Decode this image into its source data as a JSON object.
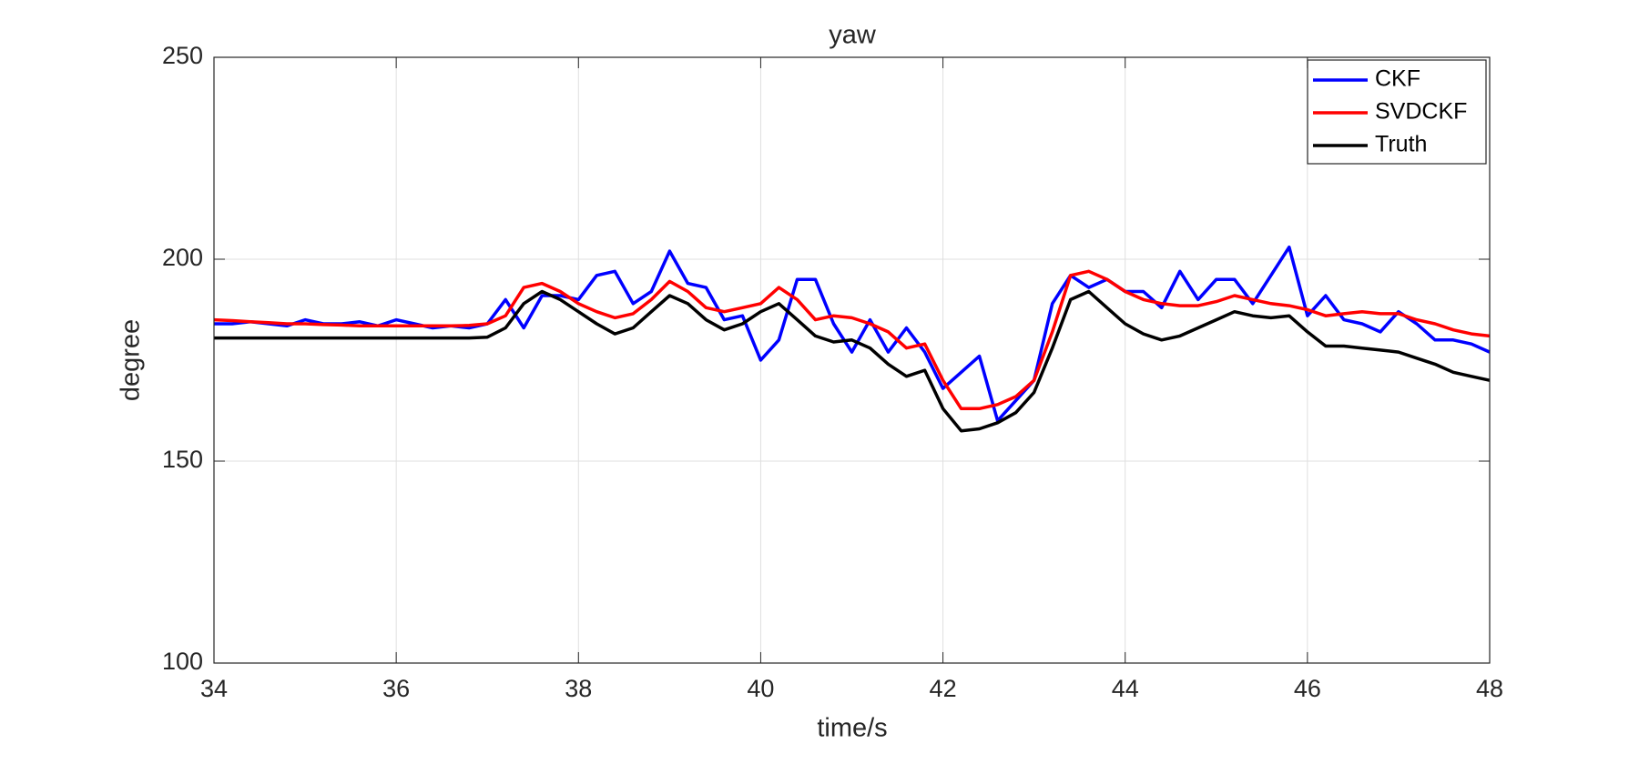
{
  "chart_data": {
    "type": "line",
    "title": "yaw",
    "x_label": "time/s",
    "y_label": "degree",
    "x": [
      34,
      34.2,
      34.4,
      34.6,
      34.8,
      35,
      35.2,
      35.4,
      35.6,
      35.8,
      36,
      36.2,
      36.4,
      36.6,
      36.8,
      37,
      37.2,
      37.4,
      37.6,
      37.8,
      38,
      38.2,
      38.4,
      38.6,
      38.8,
      39,
      39.2,
      39.4,
      39.6,
      39.8,
      40,
      40.2,
      40.4,
      40.6,
      40.8,
      41,
      41.2,
      41.4,
      41.6,
      41.8,
      42,
      42.2,
      42.4,
      42.6,
      42.8,
      43,
      43.2,
      43.4,
      43.6,
      43.8,
      44,
      44.2,
      44.4,
      44.6,
      44.8,
      45,
      45.2,
      45.4,
      45.6,
      45.8,
      46,
      46.2,
      46.4,
      46.6,
      46.8,
      47,
      47.2,
      47.4,
      47.6,
      47.8,
      48
    ],
    "series": [
      {
        "name": "CKF",
        "color": "#0000ff",
        "values": [
          184,
          184,
          184.5,
          184,
          183.5,
          185,
          184,
          184,
          184.5,
          183.5,
          185,
          184,
          183,
          183.5,
          183,
          184,
          190,
          183,
          191,
          191,
          190,
          196,
          197,
          189,
          192,
          202,
          194,
          193,
          185,
          186,
          175,
          180,
          195,
          195,
          184,
          177,
          185,
          177,
          183,
          177,
          168,
          172,
          176,
          160,
          165,
          170,
          189,
          196,
          193,
          195,
          192,
          192,
          188,
          197,
          190,
          195,
          195,
          189,
          196,
          203,
          186,
          191,
          185,
          184,
          182,
          187,
          184,
          180,
          180,
          179,
          177
        ]
      },
      {
        "name": "SVDCKF",
        "color": "#ff0000",
        "values": [
          185,
          184.8,
          184.5,
          184.3,
          184,
          184,
          183.8,
          183.7,
          183.5,
          183.5,
          183.5,
          183.5,
          183.5,
          183.5,
          183.6,
          184,
          186,
          193,
          194,
          192,
          189,
          187,
          185.5,
          186.5,
          190,
          194.5,
          192,
          188,
          187,
          188,
          189,
          193,
          190,
          185,
          186,
          185.5,
          184,
          182,
          178,
          179,
          170,
          163,
          163,
          164,
          166,
          170,
          182,
          196,
          197,
          195,
          192,
          190,
          189,
          188.5,
          188.5,
          189.5,
          191,
          190,
          189,
          188.5,
          187.5,
          186,
          186.5,
          187,
          186.5,
          186.5,
          185,
          184,
          182.5,
          181.5,
          181
        ]
      },
      {
        "name": "Truth",
        "color": "#000000",
        "values": [
          180.5,
          180.5,
          180.5,
          180.5,
          180.5,
          180.5,
          180.5,
          180.5,
          180.5,
          180.5,
          180.5,
          180.5,
          180.5,
          180.5,
          180.5,
          180.7,
          183,
          189,
          192,
          190,
          187,
          184,
          181.5,
          183,
          187,
          191,
          189,
          185,
          182.5,
          184,
          187,
          189,
          185,
          181,
          179.5,
          180,
          178,
          174,
          171,
          172.5,
          163,
          157.5,
          158,
          159.5,
          162,
          167,
          178,
          190,
          192,
          188,
          184,
          181.5,
          180,
          181,
          183,
          185,
          187,
          186,
          185.5,
          186,
          182,
          178.5,
          178.5,
          178,
          177.5,
          177,
          175.5,
          174,
          172,
          171,
          170
        ]
      }
    ],
    "xlim": [
      34,
      48
    ],
    "xticks": [
      34,
      36,
      38,
      40,
      42,
      44,
      46,
      48
    ],
    "ylim": [
      100,
      250
    ],
    "yticks": [
      100,
      150,
      200,
      250
    ],
    "grid": true,
    "legend": "upper right"
  }
}
